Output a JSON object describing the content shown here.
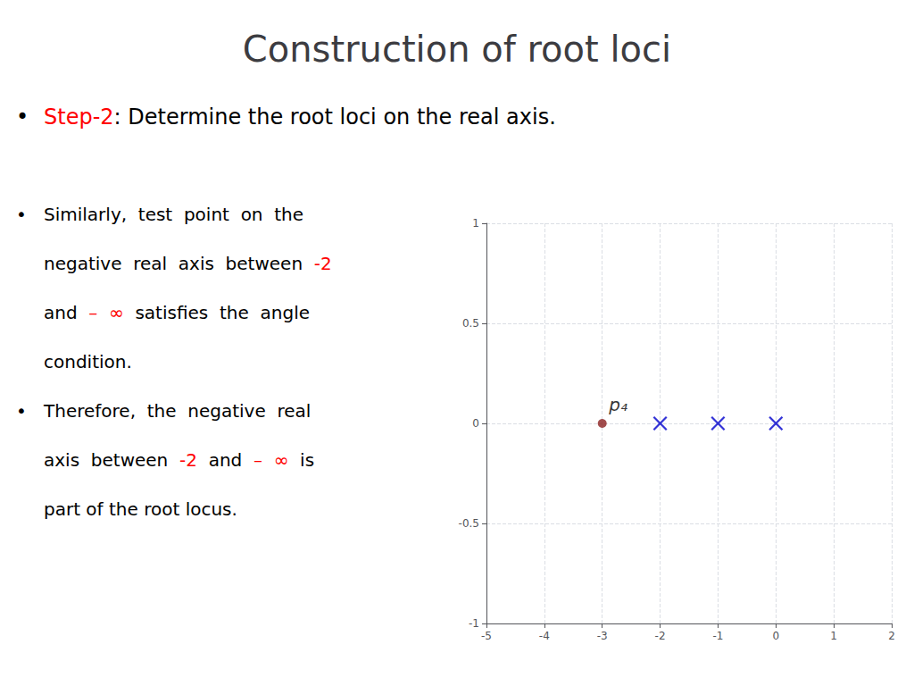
{
  "chart_data": {
    "type": "scatter",
    "title": "Construction of root loci",
    "annotations": [
      {
        "text": [
          {
            "text": "•",
            "color": "#000000"
          },
          {
            "text": "Step-2",
            "color": "#ff0000"
          },
          {
            "text": ": Determine the root loci on the real axis.",
            "color": "#000000"
          }
        ]
      },
      {
        "text": [
          {
            "text": "•",
            "color": "#000000"
          },
          {
            "text": "Similarly,  test  point  on  the",
            "color": "#000000"
          }
        ]
      },
      {
        "text": [
          {
            "text": "negative  real  axis  between  ",
            "color": "#000000"
          },
          {
            "text": "-2",
            "color": "#ff0000"
          }
        ]
      },
      {
        "text": [
          {
            "text": "and  ",
            "color": "#000000"
          },
          {
            "text": "–  ∞",
            "color": "#ff0000"
          },
          {
            "text": "  satisfies  the  angle",
            "color": "#000000"
          }
        ]
      },
      {
        "text": [
          {
            "text": "condition.",
            "color": "#000000"
          }
        ]
      },
      {
        "text": [
          {
            "text": "•",
            "color": "#000000"
          },
          {
            "text": "Therefore,  the  negative  real",
            "color": "#000000"
          }
        ]
      },
      {
        "text": [
          {
            "text": "axis  between  ",
            "color": "#000000"
          },
          {
            "text": "-2",
            "color": "#ff0000"
          },
          {
            "text": "  and  ",
            "color": "#000000"
          },
          {
            "text": "–  ∞",
            "color": "#ff0000"
          },
          {
            "text": "  is",
            "color": "#000000"
          }
        ]
      },
      {
        "text": [
          {
            "text": "part of the root locus.",
            "color": "#000000"
          }
        ]
      },
      {
        "text": "p₄",
        "x": -3,
        "y": 0,
        "color": "#000000"
      }
    ],
    "xlim": [
      -5,
      2
    ],
    "ylim": [
      -1,
      1
    ],
    "xticks": [
      -5,
      -4,
      -3,
      -2,
      -1,
      0,
      1,
      2
    ],
    "yticks": [
      -1,
      -0.5,
      0,
      0.5,
      1
    ],
    "grid": true,
    "series": [
      {
        "marker": "x",
        "color": "#0000cc",
        "x": [
          -2,
          -1,
          0
        ],
        "y": [
          0,
          0,
          0
        ]
      },
      {
        "marker": "o",
        "color": "#8b2020",
        "x": [
          -3
        ],
        "y": [
          0
        ]
      }
    ]
  }
}
